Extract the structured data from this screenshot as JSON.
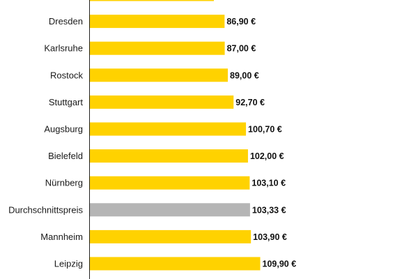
{
  "chart_data": {
    "type": "bar",
    "orientation": "horizontal",
    "categories": [
      "",
      "Dresden",
      "Karlsruhe",
      "Rostock",
      "Stuttgart",
      "Augsburg",
      "Bielefeld",
      "Nürnberg",
      "Durchschnittspreis",
      "Mannheim",
      "Leipzig"
    ],
    "values": [
      80.0,
      86.9,
      87.0,
      89.0,
      92.7,
      100.7,
      102.0,
      103.1,
      103.33,
      103.9,
      109.9
    ],
    "value_labels": [
      "",
      "86,90 €",
      "87,00 €",
      "89,00 €",
      "92,70 €",
      "100,70 €",
      "102,00 €",
      "103,10 €",
      "103,33 €",
      "103,90 €",
      "109,90 €"
    ],
    "highlight_category": "Durchschnittspreis",
    "title": "",
    "xlabel": "",
    "ylabel": "",
    "xlim": [
      0,
      120
    ],
    "grid": false,
    "legend": "none",
    "colors": {
      "bar": "#FFD200",
      "highlight": "#B5B5B5",
      "axis": "#222222",
      "label": "#1a1a1a"
    }
  }
}
